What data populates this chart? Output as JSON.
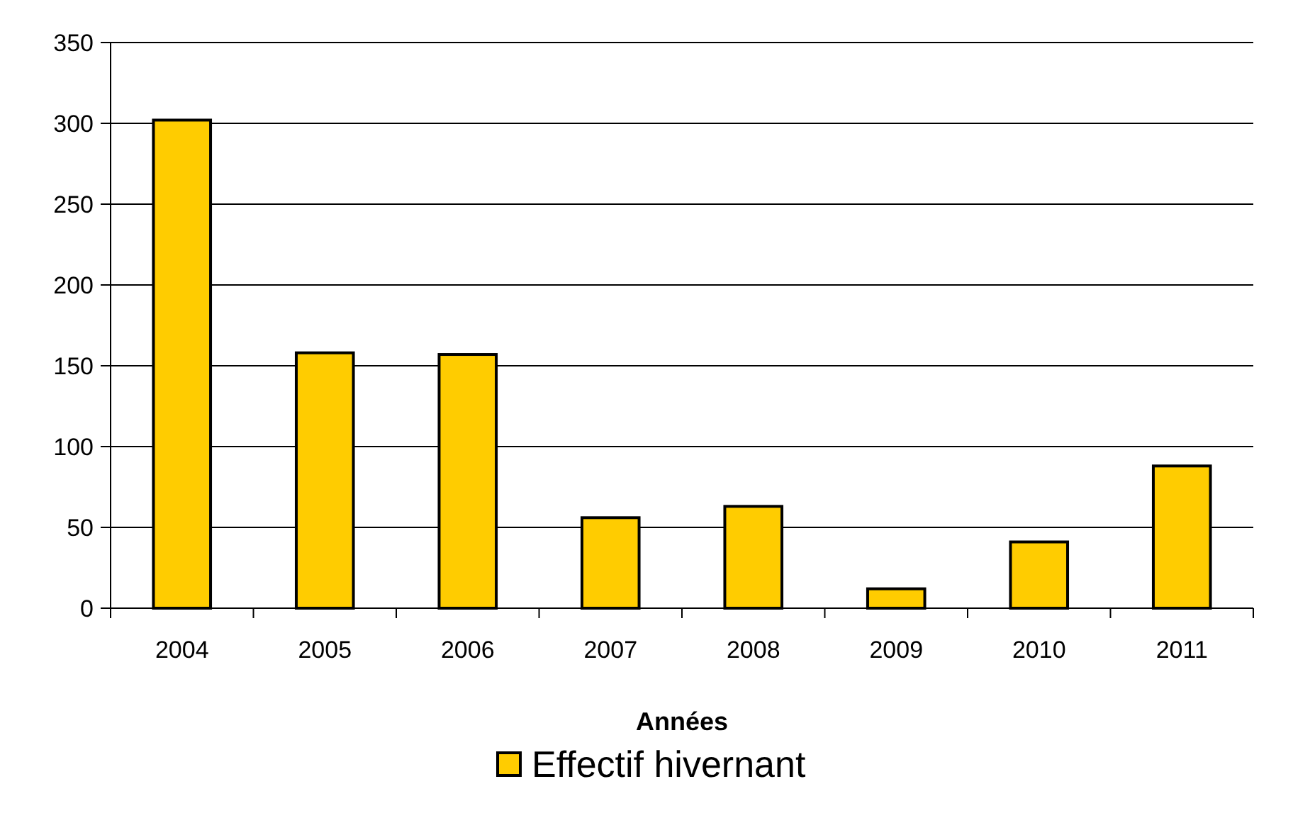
{
  "chart_data": {
    "type": "bar",
    "xlabel": "Années",
    "categories": [
      "2004",
      "2005",
      "2006",
      "2007",
      "2008",
      "2009",
      "2010",
      "2011"
    ],
    "series": [
      {
        "name": "Effectif hivernant",
        "color": "#ffcc00",
        "values": [
          302,
          158,
          157,
          56,
          63,
          12,
          41,
          88
        ]
      }
    ],
    "ylim": [
      0,
      350
    ],
    "yticks": [
      0,
      50,
      100,
      150,
      200,
      250,
      300,
      350
    ],
    "grid": "y",
    "legend": "bottom"
  }
}
